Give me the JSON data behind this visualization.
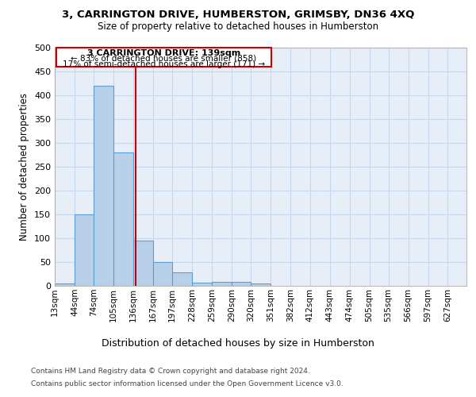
{
  "title1": "3, CARRINGTON DRIVE, HUMBERSTON, GRIMSBY, DN36 4XQ",
  "title2": "Size of property relative to detached houses in Humberston",
  "xlabel": "Distribution of detached houses by size in Humberston",
  "ylabel": "Number of detached properties",
  "footer1": "Contains HM Land Registry data © Crown copyright and database right 2024.",
  "footer2": "Contains public sector information licensed under the Open Government Licence v3.0.",
  "annotation_line1": "3 CARRINGTON DRIVE: 139sqm",
  "annotation_line2": "← 83% of detached houses are smaller (858)",
  "annotation_line3": "17% of semi-detached houses are larger (171) →",
  "bar_left_edges": [
    13,
    44,
    74,
    105,
    136,
    167,
    197,
    228,
    259,
    290,
    320,
    351,
    382,
    412,
    443,
    474,
    505,
    535,
    566,
    597
  ],
  "bar_widths": [
    31,
    30,
    31,
    31,
    31,
    30,
    31,
    31,
    31,
    30,
    31,
    31,
    30,
    31,
    31,
    31,
    30,
    31,
    31,
    30
  ],
  "bar_heights": [
    5,
    150,
    420,
    280,
    95,
    50,
    28,
    7,
    9,
    9,
    5,
    0,
    0,
    0,
    0,
    0,
    0,
    0,
    0,
    0
  ],
  "bar_color": "#b8d0e8",
  "bar_edge_color": "#5a9fd4",
  "grid_color": "#c8d8ec",
  "bg_color": "#e8eef8",
  "vline_x": 139,
  "vline_color": "#cc0000",
  "ylim": [
    0,
    500
  ],
  "yticks": [
    0,
    50,
    100,
    150,
    200,
    250,
    300,
    350,
    400,
    450,
    500
  ],
  "x_tick_labels": [
    "13sqm",
    "44sqm",
    "74sqm",
    "105sqm",
    "136sqm",
    "167sqm",
    "197sqm",
    "228sqm",
    "259sqm",
    "290sqm",
    "320sqm",
    "351sqm",
    "382sqm",
    "412sqm",
    "443sqm",
    "474sqm",
    "505sqm",
    "535sqm",
    "566sqm",
    "597sqm",
    "627sqm"
  ],
  "x_tick_positions": [
    13,
    44,
    74,
    105,
    136,
    167,
    197,
    228,
    259,
    290,
    320,
    351,
    382,
    412,
    443,
    474,
    505,
    535,
    566,
    597,
    627
  ],
  "xlim_left": 13,
  "xlim_right": 657
}
